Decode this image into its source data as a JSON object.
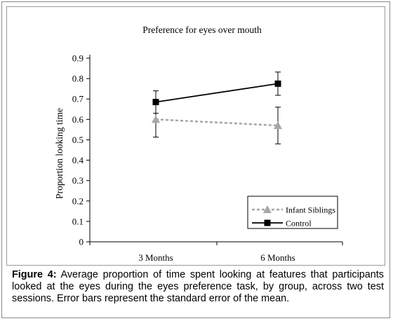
{
  "caption": {
    "label": "Figure 4:",
    "text": " Average proportion of time spent looking at features that participants looked at the eyes during the eyes preference task, by group, across two test sessions. Error bars represent the standard error of the mean."
  },
  "chart_data": {
    "type": "line",
    "title": "Preference for eyes over mouth",
    "xlabel": "",
    "ylabel": "Proportion looking time",
    "categories": [
      "3 Months",
      "6 Months"
    ],
    "ylim": [
      0,
      0.9
    ],
    "yticks": [
      "0",
      "0.1",
      "0.2",
      "0.3",
      "0.4",
      "0.5",
      "0.6",
      "0.7",
      "0.8",
      "0.9"
    ],
    "grid": false,
    "legend_position": "bottom-right",
    "series": [
      {
        "name": "Infant Siblings",
        "values": [
          0.6,
          0.57
        ],
        "error": [
          0.087,
          0.09
        ],
        "color": "#a6a6a6",
        "line_style": "dashed",
        "marker": "triangle"
      },
      {
        "name": "Control",
        "values": [
          0.685,
          0.775
        ],
        "error": [
          0.055,
          0.057
        ],
        "color": "#000000",
        "line_style": "solid",
        "marker": "square"
      }
    ]
  }
}
